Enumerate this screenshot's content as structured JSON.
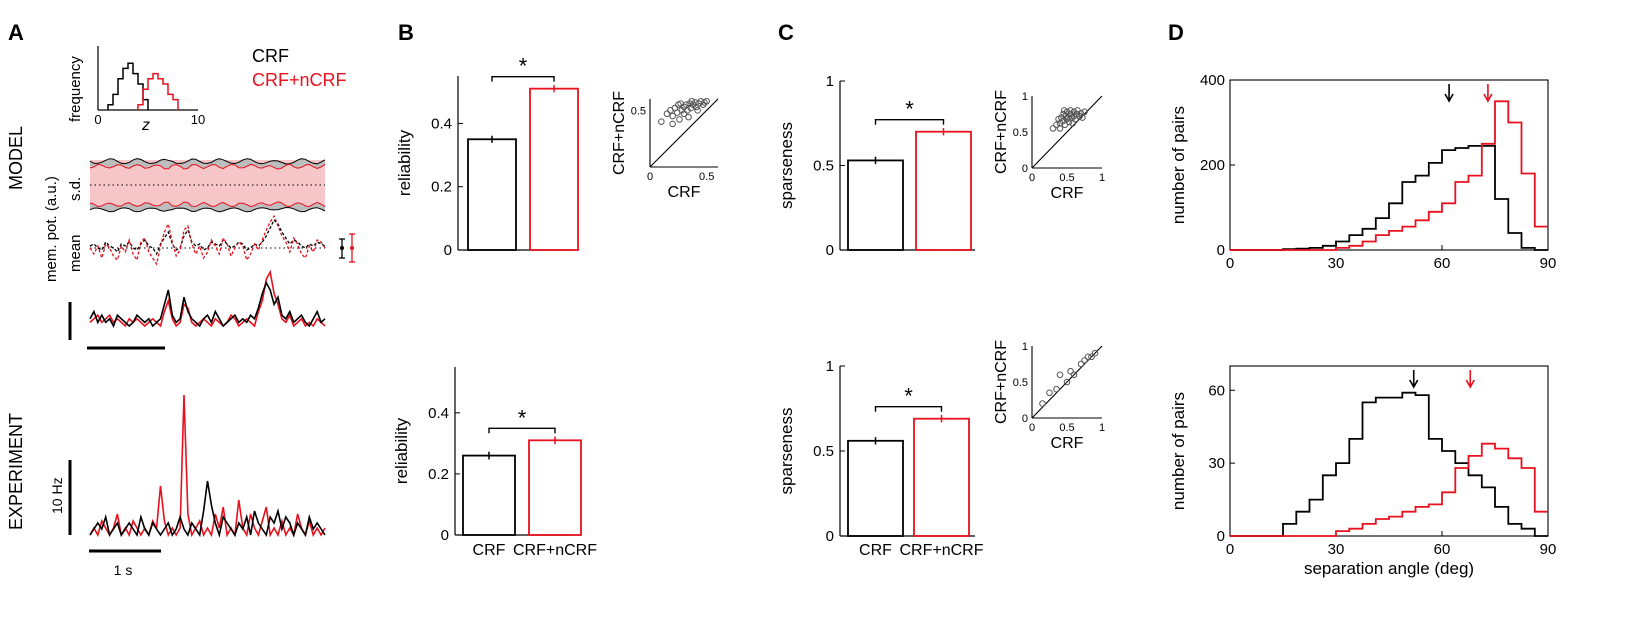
{
  "figure": {
    "panel_labels": [
      "A",
      "B",
      "C",
      "D"
    ],
    "row_labels": {
      "model": "MODEL",
      "experiment": "EXPERIMENT"
    },
    "legend": {
      "crf": "CRF",
      "crf_ncrf": "CRF+nCRF"
    },
    "panel_a": {
      "hist_ylabel": "frequency",
      "hist_xlabel": "z",
      "hist_ticks": [
        "0",
        "10"
      ],
      "ylabel": "mem. pot. (a.u.)",
      "sd_label": "s.d.",
      "mean_label": "mean",
      "rate_scale_label": "10 Hz",
      "time_scale_label": "1 s"
    },
    "colors": {
      "crf": "#000000",
      "crf_ncrf": "#e8111e",
      "shade": "#f7c6c8",
      "gray": "#bdbdbd",
      "scatter": "#555555"
    }
  },
  "chart_data": [
    {
      "id": "A-hist",
      "type": "histogram",
      "xlabel": "z",
      "ylabel": "frequency",
      "xlim": [
        0,
        10
      ],
      "xticks": [
        0,
        10
      ],
      "series": [
        {
          "name": "CRF",
          "bin_edges": [
            1,
            1.5,
            2,
            2.5,
            3,
            3.5,
            4,
            4.5,
            5
          ],
          "counts": [
            1,
            3,
            6,
            8,
            9,
            7,
            5,
            2
          ]
        },
        {
          "name": "CRF+nCRF",
          "bin_edges": [
            4,
            4.5,
            5,
            5.5,
            6,
            6.5,
            7,
            7.5,
            8
          ],
          "counts": [
            1,
            4,
            6,
            7,
            6,
            5,
            3,
            2
          ]
        }
      ]
    },
    {
      "id": "A-traces",
      "type": "line",
      "ylabel": "mem. pot. (a.u.)",
      "x": [
        0,
        1,
        2,
        3,
        4,
        5,
        6,
        7,
        8,
        9,
        10,
        11,
        12,
        13,
        14,
        15,
        16,
        17,
        18,
        19,
        20,
        21,
        22,
        23,
        24,
        25,
        26,
        27,
        28,
        29,
        30,
        31,
        32,
        33,
        34,
        35,
        36,
        37,
        38,
        39,
        40,
        41,
        42,
        43,
        44,
        45,
        46,
        47,
        48,
        49,
        50,
        51,
        52,
        53,
        54,
        55,
        56,
        57,
        58,
        59,
        60
      ],
      "series": [
        {
          "name": "CRF mean",
          "values": [
            0.1,
            0.2,
            0.0,
            -0.1,
            0.3,
            0.1,
            0.0,
            -0.2,
            0.2,
            0.1,
            0.3,
            0.0,
            -0.1,
            0.2,
            0.4,
            0.1,
            0.0,
            -0.3,
            0.2,
            0.5,
            0.8,
            0.2,
            -0.1,
            0.0,
            0.6,
            0.9,
            0.3,
            0.1,
            0.2,
            -0.1,
            0.0,
            0.3,
            0.2,
            0.1,
            0.4,
            0.2,
            0.0,
            0.1,
            0.3,
            0.2,
            -0.1,
            0.0,
            0.2,
            0.1,
            0.3,
            0.6,
            1.0,
            1.4,
            1.2,
            0.8,
            0.5,
            0.2,
            0.4,
            0.3,
            0.1,
            0.0,
            0.2,
            0.1,
            0.3,
            0.2,
            0.1
          ]
        },
        {
          "name": "CRF+nCRF mean",
          "values": [
            0.0,
            -0.3,
            0.1,
            -0.5,
            0.2,
            0.0,
            -0.4,
            -0.6,
            0.1,
            -0.2,
            0.4,
            -0.3,
            -0.6,
            0.3,
            0.5,
            -0.2,
            -0.5,
            -0.8,
            0.1,
            0.8,
            1.2,
            0.3,
            -0.4,
            -0.1,
            0.9,
            1.1,
            0.2,
            -0.3,
            0.1,
            -0.5,
            -0.2,
            0.4,
            0.1,
            -0.3,
            0.5,
            0.2,
            -0.4,
            0.0,
            0.3,
            0.1,
            -0.6,
            -0.3,
            0.2,
            -0.1,
            0.4,
            0.9,
            1.3,
            1.6,
            1.1,
            0.6,
            0.3,
            -0.2,
            0.5,
            0.2,
            -0.3,
            -0.5,
            0.1,
            -0.2,
            0.4,
            0.3,
            0.0
          ]
        },
        {
          "name": "CRF rate",
          "values": [
            0.2,
            0.4,
            0.1,
            0.3,
            0.1,
            0.2,
            0.0,
            0.3,
            0.2,
            0.1,
            0.0,
            0.1,
            0.3,
            0.2,
            0.1,
            0.2,
            0.0,
            0.1,
            0.2,
            0.6,
            1.0,
            0.3,
            0.1,
            0.2,
            0.8,
            0.4,
            0.2,
            0.1,
            0.0,
            0.2,
            0.3,
            0.1,
            0.4,
            0.2,
            0.0,
            0.1,
            0.2,
            0.3,
            0.1,
            0.2,
            0.1,
            0.3,
            0.2,
            0.5,
            0.9,
            1.2,
            1.0,
            0.6,
            0.8,
            0.3,
            0.2,
            0.4,
            0.1,
            0.2,
            0.3,
            0.1,
            0.0,
            0.2,
            0.4,
            0.1,
            0.2
          ]
        },
        {
          "name": "CRF+nCRF rate",
          "values": [
            0.1,
            0.2,
            0.3,
            0.1,
            0.2,
            0.3,
            0.1,
            0.2,
            0.1,
            0.0,
            0.2,
            0.1,
            0.2,
            0.1,
            0.0,
            0.1,
            0.2,
            0.1,
            0.0,
            0.4,
            0.7,
            0.2,
            0.0,
            0.1,
            0.6,
            0.5,
            0.1,
            0.0,
            0.1,
            0.2,
            0.1,
            0.0,
            0.2,
            0.1,
            0.0,
            0.1,
            0.3,
            0.2,
            0.0,
            0.1,
            0.2,
            0.1,
            0.0,
            0.4,
            0.7,
            1.3,
            1.5,
            0.9,
            0.6,
            0.2,
            0.1,
            0.3,
            0.0,
            0.1,
            0.2,
            0.0,
            0.1,
            0.0,
            0.2,
            0.1,
            0.0
          ]
        },
        {
          "name": "experiment CRF",
          "values": [
            0.0,
            0.1,
            0.2,
            0.1,
            0.3,
            0.0,
            0.1,
            0.2,
            0.0,
            0.1,
            0.2,
            0.1,
            0.0,
            0.3,
            0.1,
            0.0,
            0.2,
            0.1,
            0.0,
            0.1,
            0.2,
            0.0,
            0.1,
            0.3,
            0.1,
            0.0,
            0.2,
            0.1,
            0.0,
            0.4,
            0.9,
            0.5,
            0.2,
            0.0,
            0.3,
            0.2,
            0.1,
            0.0,
            0.2,
            0.1,
            0.3,
            0.0,
            0.4,
            0.2,
            0.1,
            0.0,
            0.3,
            0.2,
            0.4,
            0.1,
            0.3,
            0.2,
            0.0,
            0.2,
            0.1,
            0.0,
            0.3,
            0.1,
            0.2,
            0.1,
            0.0
          ]
        },
        {
          "name": "experiment CRF+nCRF",
          "values": [
            0.0,
            0.1,
            0.0,
            0.2,
            0.1,
            0.0,
            0.1,
            0.3,
            0.0,
            0.1,
            0.0,
            0.2,
            0.1,
            0.0,
            0.1,
            0.0,
            0.2,
            0.1,
            0.7,
            0.2,
            0.0,
            0.1,
            0.0,
            0.1,
            2.0,
            0.3,
            0.0,
            0.1,
            0.2,
            0.0,
            0.1,
            0.0,
            0.3,
            0.1,
            0.4,
            0.0,
            0.1,
            0.0,
            0.5,
            0.1,
            0.0,
            0.3,
            0.1,
            0.0,
            0.2,
            0.4,
            0.0,
            0.1,
            0.0,
            0.2,
            0.0,
            0.1,
            0.0,
            0.3,
            0.1,
            0.0,
            0.2,
            0.0,
            0.1,
            0.0,
            0.1
          ]
        }
      ]
    },
    {
      "id": "B-model",
      "type": "bar",
      "ylabel": "reliability",
      "ylim": [
        0,
        0.55
      ],
      "yticks": [
        0,
        0.2,
        0.4
      ],
      "categories": [
        "CRF",
        "CRF+nCRF"
      ],
      "values": [
        0.35,
        0.51
      ],
      "errors": [
        0.005,
        0.005
      ],
      "significance": "*",
      "inset": {
        "type": "scatter",
        "xlabel": "CRF",
        "ylabel": "CRF+nCRF",
        "xlim": [
          0,
          0.6
        ],
        "ylim": [
          0,
          0.6
        ],
        "xticks": [
          0,
          0.5
        ],
        "yticks": [
          0.5
        ],
        "points": [
          [
            0.1,
            0.4
          ],
          [
            0.15,
            0.47
          ],
          [
            0.18,
            0.5
          ],
          [
            0.2,
            0.45
          ],
          [
            0.22,
            0.52
          ],
          [
            0.24,
            0.48
          ],
          [
            0.25,
            0.55
          ],
          [
            0.26,
            0.42
          ],
          [
            0.28,
            0.5
          ],
          [
            0.3,
            0.53
          ],
          [
            0.3,
            0.47
          ],
          [
            0.32,
            0.55
          ],
          [
            0.33,
            0.5
          ],
          [
            0.35,
            0.56
          ],
          [
            0.36,
            0.52
          ],
          [
            0.38,
            0.55
          ],
          [
            0.4,
            0.57
          ],
          [
            0.41,
            0.53
          ],
          [
            0.43,
            0.56
          ],
          [
            0.45,
            0.58
          ],
          [
            0.47,
            0.55
          ],
          [
            0.5,
            0.58
          ],
          [
            0.2,
            0.38
          ],
          [
            0.27,
            0.56
          ],
          [
            0.34,
            0.44
          ],
          [
            0.37,
            0.58
          ],
          [
            0.42,
            0.5
          ],
          [
            0.48,
            0.57
          ]
        ]
      }
    },
    {
      "id": "B-experiment",
      "type": "bar",
      "ylabel": "reliability",
      "ylim": [
        0,
        0.55
      ],
      "yticks": [
        0,
        0.2,
        0.4
      ],
      "categories": [
        "CRF",
        "CRF+nCRF"
      ],
      "values": [
        0.26,
        0.31
      ],
      "errors": [
        0.006,
        0.006
      ],
      "significance": "*"
    },
    {
      "id": "C-model",
      "type": "bar",
      "ylabel": "sparseness",
      "ylim": [
        0,
        1
      ],
      "yticks": [
        0,
        0.5,
        1
      ],
      "categories": [
        "CRF",
        "CRF+nCRF"
      ],
      "values": [
        0.53,
        0.7
      ],
      "errors": [
        0.01,
        0.01
      ],
      "significance": "*",
      "inset": {
        "type": "scatter",
        "xlabel": "CRF",
        "ylabel": "CRF+nCRF",
        "xlim": [
          0,
          1
        ],
        "ylim": [
          0,
          1
        ],
        "xticks": [
          0,
          0.5,
          1
        ],
        "yticks": [
          0,
          0.5,
          1
        ],
        "points": [
          [
            0.3,
            0.55
          ],
          [
            0.35,
            0.6
          ],
          [
            0.38,
            0.68
          ],
          [
            0.4,
            0.62
          ],
          [
            0.42,
            0.7
          ],
          [
            0.44,
            0.65
          ],
          [
            0.45,
            0.75
          ],
          [
            0.47,
            0.6
          ],
          [
            0.48,
            0.72
          ],
          [
            0.5,
            0.68
          ],
          [
            0.5,
            0.78
          ],
          [
            0.52,
            0.7
          ],
          [
            0.53,
            0.64
          ],
          [
            0.55,
            0.75
          ],
          [
            0.55,
            0.8
          ],
          [
            0.57,
            0.7
          ],
          [
            0.58,
            0.62
          ],
          [
            0.6,
            0.78
          ],
          [
            0.6,
            0.72
          ],
          [
            0.62,
            0.68
          ],
          [
            0.64,
            0.75
          ],
          [
            0.65,
            0.8
          ],
          [
            0.68,
            0.72
          ],
          [
            0.7,
            0.76
          ],
          [
            0.72,
            0.7
          ],
          [
            0.75,
            0.78
          ],
          [
            0.4,
            0.55
          ],
          [
            0.46,
            0.8
          ]
        ]
      }
    },
    {
      "id": "C-experiment",
      "type": "bar",
      "ylabel": "sparseness",
      "ylim": [
        0,
        1
      ],
      "yticks": [
        0,
        0.5,
        1
      ],
      "categories": [
        "CRF",
        "CRF+nCRF"
      ],
      "values": [
        0.56,
        0.69
      ],
      "errors": [
        0.01,
        0.01
      ],
      "significance": "*",
      "inset": {
        "type": "scatter",
        "xlabel": "CRF",
        "ylabel": "CRF+nCRF",
        "xlim": [
          0,
          1
        ],
        "ylim": [
          0,
          1
        ],
        "xticks": [
          0,
          0.5,
          1
        ],
        "yticks": [
          0,
          0.5,
          1
        ],
        "points": [
          [
            0.15,
            0.2
          ],
          [
            0.25,
            0.35
          ],
          [
            0.35,
            0.4
          ],
          [
            0.4,
            0.6
          ],
          [
            0.5,
            0.5
          ],
          [
            0.55,
            0.65
          ],
          [
            0.6,
            0.6
          ],
          [
            0.7,
            0.75
          ],
          [
            0.75,
            0.8
          ],
          [
            0.8,
            0.85
          ],
          [
            0.85,
            0.85
          ],
          [
            0.9,
            0.9
          ]
        ]
      }
    },
    {
      "id": "D-model",
      "type": "histogram",
      "ylabel": "number of pairs",
      "xlim": [
        0,
        90
      ],
      "ylim": [
        0,
        400
      ],
      "xticks": [
        0,
        30,
        60,
        90
      ],
      "yticks": [
        0,
        200,
        400
      ],
      "bin_width": 3.75,
      "bin_starts": [
        0,
        3.75,
        7.5,
        11.25,
        15,
        18.75,
        22.5,
        26.25,
        30,
        33.75,
        37.5,
        41.25,
        45,
        48.75,
        52.5,
        56.25,
        60,
        63.75,
        67.5,
        71.25,
        75,
        78.75,
        82.5,
        86.25
      ],
      "series": [
        {
          "name": "CRF",
          "values": [
            0,
            0,
            0,
            0,
            2,
            3,
            5,
            10,
            20,
            35,
            50,
            75,
            110,
            160,
            175,
            205,
            235,
            240,
            245,
            245,
            120,
            40,
            5,
            0
          ],
          "median_arrow": 62
        },
        {
          "name": "CRF+nCRF",
          "values": [
            0,
            0,
            0,
            0,
            0,
            0,
            0,
            0,
            5,
            10,
            20,
            35,
            45,
            55,
            70,
            90,
            110,
            160,
            175,
            250,
            350,
            300,
            180,
            55
          ],
          "median_arrow": 73
        }
      ]
    },
    {
      "id": "D-experiment",
      "type": "histogram",
      "xlabel": "separation angle (deg)",
      "ylabel": "number of pairs",
      "xlim": [
        0,
        90
      ],
      "ylim": [
        0,
        70
      ],
      "xticks": [
        0,
        30,
        60,
        90
      ],
      "yticks": [
        0,
        30,
        60
      ],
      "bin_width": 3.75,
      "bin_starts": [
        0,
        3.75,
        7.5,
        11.25,
        15,
        18.75,
        22.5,
        26.25,
        30,
        33.75,
        37.5,
        41.25,
        45,
        48.75,
        52.5,
        56.25,
        60,
        63.75,
        67.5,
        71.25,
        75,
        78.75,
        82.5,
        86.25
      ],
      "series": [
        {
          "name": "CRF",
          "values": [
            0,
            0,
            0,
            0,
            5,
            10,
            15,
            25,
            30,
            40,
            55,
            57,
            57,
            59,
            58,
            40,
            35,
            30,
            25,
            20,
            12,
            5,
            3,
            0
          ],
          "median_arrow": 52
        },
        {
          "name": "CRF+nCRF",
          "values": [
            0,
            0,
            0,
            0,
            0,
            0,
            0,
            0,
            2,
            3,
            5,
            7,
            8,
            10,
            12,
            13,
            18,
            28,
            33,
            38,
            36,
            32,
            28,
            10
          ],
          "median_arrow": 68
        }
      ]
    }
  ]
}
